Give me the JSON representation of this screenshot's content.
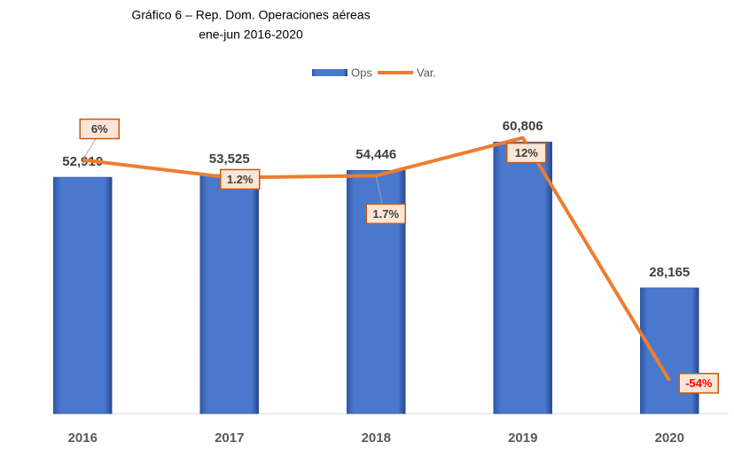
{
  "chart_data": {
    "type": "bar",
    "title": "Gráfico 6 – Rep. Dom. Operaciones aéreas",
    "subtitle": "ene-jun 2016-2020",
    "categories": [
      "2016",
      "2017",
      "2018",
      "2019",
      "2020"
    ],
    "series": [
      {
        "name": "Ops",
        "type": "bar",
        "color": "#4472c4",
        "values": [
          52910,
          53525,
          54446,
          60806,
          28165
        ],
        "value_labels": [
          "52,910",
          "53,525",
          "54,446",
          "60,806",
          "28,165"
        ]
      },
      {
        "name": "Var.",
        "type": "line",
        "axis": "y2",
        "color": "#ed7d31",
        "values": [
          6,
          1.2,
          1.7,
          12,
          -54
        ],
        "value_labels": [
          "6%",
          "1.2%",
          "1.7%",
          "12%",
          "-54%"
        ]
      }
    ],
    "ylim": [
      0,
      65000
    ],
    "y2lim": [
      -63,
      16
    ],
    "legend": "top"
  }
}
